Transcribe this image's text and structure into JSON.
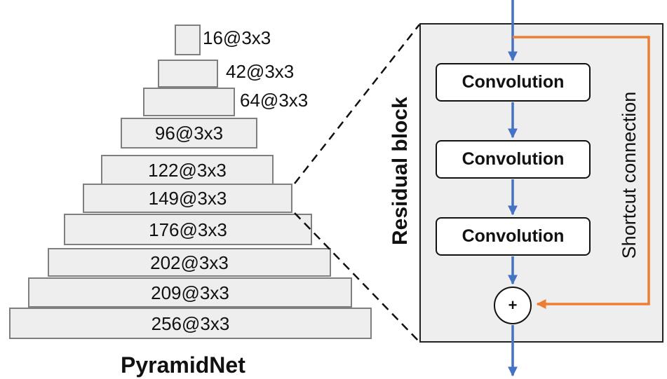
{
  "pyramid": {
    "title": "PyramidNet",
    "layers": [
      {
        "label": "16@3x3"
      },
      {
        "label": "42@3x3"
      },
      {
        "label": "64@3x3"
      },
      {
        "label": "96@3x3"
      },
      {
        "label": "122@3x3"
      },
      {
        "label": "149@3x3"
      },
      {
        "label": "176@3x3"
      },
      {
        "label": "202@3x3"
      },
      {
        "label": "209@3x3"
      },
      {
        "label": "256@3x3"
      }
    ]
  },
  "residual_block": {
    "label": "Residual block",
    "convolutions": [
      "Convolution",
      "Convolution",
      "Convolution"
    ],
    "sum_symbol": "+",
    "shortcut_label": "Shortcut connection"
  },
  "colors": {
    "main_flow": "#4472c4",
    "shortcut": "#ed7d31",
    "layer_fill": "#eeeeee",
    "layer_border": "#7f7f7f"
  }
}
